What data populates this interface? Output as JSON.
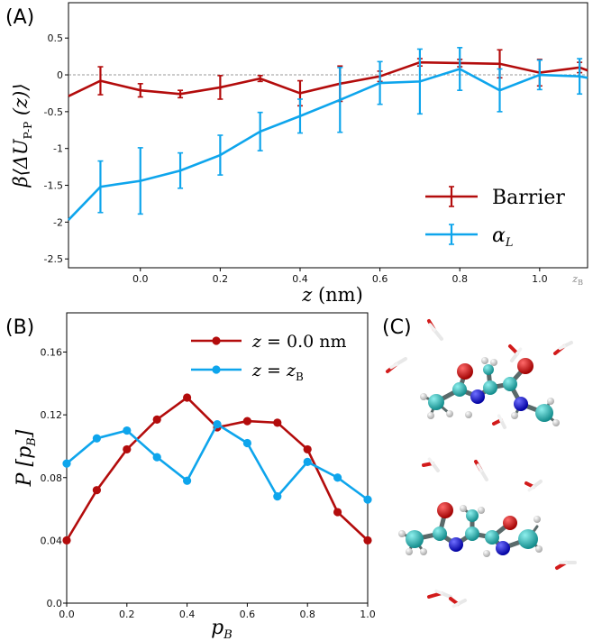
{
  "panels": {
    "a": {
      "label": "(A)"
    },
    "b": {
      "label": "(B)"
    },
    "c": {
      "label": "(C)"
    }
  },
  "colors": {
    "barrier": "#b30c0c",
    "alpha": "#0ea5ec",
    "axis": "#000000",
    "zero_line": "#777777"
  },
  "chart_data": [
    {
      "type": "line",
      "panel": "A",
      "xlabel_var": "z",
      "xlabel_unit": "(nm)",
      "ylabel_pre": "β⟨ΔU",
      "ylabel_sub": "P-P",
      "ylabel_post": "(z)⟩",
      "xlim": [
        -0.18,
        1.12
      ],
      "ylim": [
        -2.62,
        0.98
      ],
      "x_ticks": [
        0.0,
        0.2,
        0.4,
        0.6,
        0.8,
        1.0
      ],
      "x_tick_labels": [
        "0.0",
        "0.2",
        "0.4",
        "0.6",
        "0.8",
        "1.0"
      ],
      "x_extra_tick": {
        "value": 1.1,
        "label_var": "z",
        "label_sub": "B"
      },
      "y_ticks": [
        0.5,
        0,
        -0.5,
        -1,
        -1.5,
        -2,
        -2.5
      ],
      "y_tick_labels": [
        "0.5",
        "0",
        "-0.5",
        "-1",
        "-1.5",
        "-2",
        "-2.5"
      ],
      "zero_line": true,
      "grid": false,
      "legend_position": "bottom-right",
      "series": [
        {
          "name": "Barrier",
          "color_key": "barrier",
          "x": [
            -0.18,
            -0.1,
            0.0,
            0.1,
            0.2,
            0.3,
            0.4,
            0.5,
            0.6,
            0.7,
            0.8,
            0.9,
            1.0,
            1.1,
            1.12
          ],
          "y": [
            -0.29,
            -0.08,
            -0.21,
            -0.26,
            -0.17,
            -0.05,
            -0.25,
            -0.12,
            -0.02,
            0.17,
            0.16,
            0.15,
            0.03,
            0.1,
            0.06
          ],
          "err": [
            0,
            0.19,
            0.09,
            0.05,
            0.16,
            0.04,
            0.17,
            0.24,
            0.07,
            0.05,
            0.05,
            0.19,
            0.18,
            0.07,
            0
          ],
          "legend_label": "Barrier"
        },
        {
          "name": "α_L",
          "color_key": "alpha",
          "x": [
            -0.18,
            -0.1,
            0.0,
            0.1,
            0.2,
            0.3,
            0.4,
            0.5,
            0.6,
            0.7,
            0.8,
            0.9,
            1.0,
            1.1,
            1.12
          ],
          "y": [
            -1.97,
            -1.52,
            -1.44,
            -1.3,
            -1.09,
            -0.77,
            -0.56,
            -0.34,
            -0.11,
            -0.09,
            0.08,
            -0.21,
            0.0,
            -0.02,
            -0.04
          ],
          "err": [
            0,
            0.35,
            0.45,
            0.24,
            0.27,
            0.26,
            0.23,
            0.44,
            0.29,
            0.44,
            0.29,
            0.29,
            0.2,
            0.24,
            0
          ],
          "legend_var": "α",
          "legend_sub": "L"
        }
      ]
    },
    {
      "type": "line",
      "panel": "B",
      "xlabel_var": "p",
      "xlabel_sub": "B",
      "ylabel_var": "P",
      "ylabel_bracket_var": "p",
      "ylabel_bracket_sub": "B",
      "xlim": [
        0,
        1
      ],
      "ylim": [
        0,
        0.185
      ],
      "x_ticks": [
        0.0,
        0.2,
        0.4,
        0.6,
        0.8,
        1.0
      ],
      "x_tick_labels": [
        "0.0",
        "0.2",
        "0.4",
        "0.6",
        "0.8",
        "1.0"
      ],
      "y_ticks": [
        0.0,
        0.04,
        0.08,
        0.12,
        0.16
      ],
      "y_tick_labels": [
        "0.0",
        "0.04",
        "0.08",
        "0.12",
        "0.16"
      ],
      "grid": false,
      "legend_position": "top-right",
      "series": [
        {
          "name": "z = 0.0 nm",
          "color_key": "barrier",
          "legend_var": "z",
          "legend_rest": " = 0.0 nm",
          "x": [
            0.0,
            0.1,
            0.2,
            0.3,
            0.4,
            0.5,
            0.6,
            0.7,
            0.8,
            0.9,
            1.0
          ],
          "y": [
            0.04,
            0.072,
            0.098,
            0.117,
            0.131,
            0.112,
            0.116,
            0.115,
            0.098,
            0.058,
            0.04
          ]
        },
        {
          "name": "z = z_B",
          "color_key": "alpha",
          "legend_var": "z",
          "legend_rest": " = ",
          "legend_var2": "z",
          "legend_sub": "B",
          "x": [
            0.0,
            0.1,
            0.2,
            0.3,
            0.4,
            0.5,
            0.6,
            0.7,
            0.8,
            0.9,
            1.0
          ],
          "y": [
            0.089,
            0.105,
            0.11,
            0.093,
            0.078,
            0.114,
            0.102,
            0.068,
            0.09,
            0.08,
            0.066
          ]
        }
      ]
    }
  ]
}
